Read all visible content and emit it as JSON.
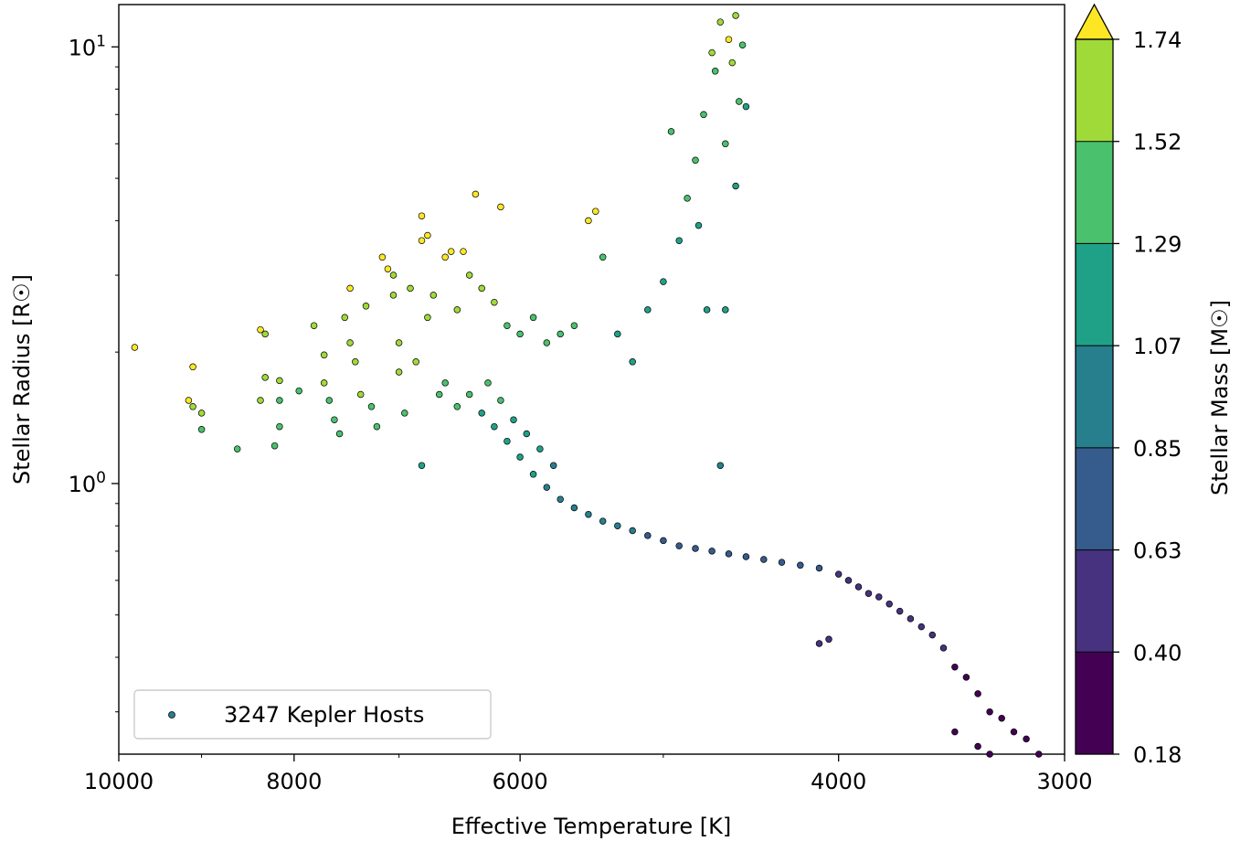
{
  "chart_data": {
    "type": "scatter",
    "title": "",
    "xlabel": "Effective Temperature [K]",
    "ylabel": "Stellar Radius [R☉]",
    "x_scale": "log",
    "y_scale": "log",
    "x_reversed": true,
    "xlim": [
      10000,
      3000
    ],
    "ylim": [
      0.24,
      12.5
    ],
    "x_ticks": [
      {
        "value": 10000,
        "label": "10000"
      },
      {
        "value": 8000,
        "label": "8000"
      },
      {
        "value": 6000,
        "label": "6000"
      },
      {
        "value": 4000,
        "label": "4000"
      },
      {
        "value": 3000,
        "label": "3000"
      }
    ],
    "x_minor_ticks": [
      9000,
      7000,
      5000
    ],
    "y_ticks": [
      {
        "value": 1,
        "base": "10",
        "exp": "0"
      },
      {
        "value": 10,
        "base": "10",
        "exp": "1"
      }
    ],
    "y_minor_ticks": [
      0.3,
      0.4,
      0.5,
      0.6,
      0.7,
      0.8,
      0.9,
      2,
      3,
      4,
      5,
      6,
      7,
      8,
      9
    ],
    "legend": {
      "label": "3247 Kepler Hosts",
      "position": "lower-left"
    },
    "colorbar": {
      "label": "Stellar Mass [M☉]",
      "ticks": [
        "0.18",
        "0.40",
        "0.63",
        "0.85",
        "1.07",
        "1.29",
        "1.52",
        "1.74"
      ],
      "levels": [
        0.18,
        0.4,
        0.63,
        0.85,
        1.07,
        1.29,
        1.52,
        1.74
      ],
      "colors": [
        "#440154",
        "#46327e",
        "#365c8d",
        "#277f8e",
        "#1fa187",
        "#4ac16d",
        "#a0da39",
        "#fde725"
      ],
      "extend": "max"
    },
    "series": [
      {
        "label_ref": "legend",
        "points": [
          {
            "x": 9800,
            "y": 2.05,
            "m": 1.8
          },
          {
            "x": 9100,
            "y": 1.85,
            "m": 1.8
          },
          {
            "x": 9150,
            "y": 1.55,
            "m": 1.8
          },
          {
            "x": 9100,
            "y": 1.5,
            "m": 1.7
          },
          {
            "x": 9000,
            "y": 1.45,
            "m": 1.55
          },
          {
            "x": 9000,
            "y": 1.33,
            "m": 1.45
          },
          {
            "x": 8600,
            "y": 1.2,
            "m": 1.35
          },
          {
            "x": 8350,
            "y": 2.25,
            "m": 1.75
          },
          {
            "x": 8300,
            "y": 2.2,
            "m": 1.7
          },
          {
            "x": 8300,
            "y": 1.75,
            "m": 1.65
          },
          {
            "x": 8350,
            "y": 1.55,
            "m": 1.6
          },
          {
            "x": 8150,
            "y": 1.72,
            "m": 1.55
          },
          {
            "x": 8150,
            "y": 1.55,
            "m": 1.5
          },
          {
            "x": 8150,
            "y": 1.35,
            "m": 1.45
          },
          {
            "x": 8200,
            "y": 1.22,
            "m": 1.35
          },
          {
            "x": 7950,
            "y": 1.63,
            "m": 1.5
          },
          {
            "x": 7800,
            "y": 2.3,
            "m": 1.65
          },
          {
            "x": 7700,
            "y": 1.97,
            "m": 1.6
          },
          {
            "x": 7700,
            "y": 1.7,
            "m": 1.55
          },
          {
            "x": 7650,
            "y": 1.55,
            "m": 1.5
          },
          {
            "x": 7600,
            "y": 1.4,
            "m": 1.45
          },
          {
            "x": 7550,
            "y": 1.3,
            "m": 1.4
          },
          {
            "x": 7500,
            "y": 2.4,
            "m": 1.7
          },
          {
            "x": 7450,
            "y": 2.8,
            "m": 1.75
          },
          {
            "x": 7450,
            "y": 2.1,
            "m": 1.65
          },
          {
            "x": 7400,
            "y": 1.9,
            "m": 1.6
          },
          {
            "x": 7350,
            "y": 1.6,
            "m": 1.55
          },
          {
            "x": 7300,
            "y": 2.55,
            "m": 1.65
          },
          {
            "x": 7250,
            "y": 1.5,
            "m": 1.5
          },
          {
            "x": 7200,
            "y": 1.35,
            "m": 1.42
          },
          {
            "x": 7150,
            "y": 3.3,
            "m": 1.78
          },
          {
            "x": 7100,
            "y": 3.1,
            "m": 1.75
          },
          {
            "x": 7050,
            "y": 3.0,
            "m": 1.7
          },
          {
            "x": 7050,
            "y": 2.7,
            "m": 1.65
          },
          {
            "x": 7000,
            "y": 2.1,
            "m": 1.6
          },
          {
            "x": 7000,
            "y": 1.8,
            "m": 1.55
          },
          {
            "x": 6950,
            "y": 1.45,
            "m": 1.45
          },
          {
            "x": 6900,
            "y": 2.8,
            "m": 1.7
          },
          {
            "x": 6850,
            "y": 1.9,
            "m": 1.55
          },
          {
            "x": 6800,
            "y": 4.1,
            "m": 1.8
          },
          {
            "x": 6800,
            "y": 3.6,
            "m": 1.78
          },
          {
            "x": 6750,
            "y": 3.7,
            "m": 1.78
          },
          {
            "x": 6750,
            "y": 2.4,
            "m": 1.6
          },
          {
            "x": 6700,
            "y": 2.7,
            "m": 1.65
          },
          {
            "x": 6650,
            "y": 1.6,
            "m": 1.45
          },
          {
            "x": 6600,
            "y": 3.3,
            "m": 1.76
          },
          {
            "x": 6550,
            "y": 3.4,
            "m": 1.78
          },
          {
            "x": 6500,
            "y": 2.5,
            "m": 1.6
          },
          {
            "x": 6450,
            "y": 3.4,
            "m": 1.78
          },
          {
            "x": 6400,
            "y": 3.0,
            "m": 1.7
          },
          {
            "x": 6350,
            "y": 4.6,
            "m": 1.82
          },
          {
            "x": 6300,
            "y": 2.8,
            "m": 1.65
          },
          {
            "x": 6200,
            "y": 2.6,
            "m": 1.55
          },
          {
            "x": 6150,
            "y": 4.3,
            "m": 1.8
          },
          {
            "x": 6100,
            "y": 2.3,
            "m": 1.5
          },
          {
            "x": 6000,
            "y": 2.2,
            "m": 1.45
          },
          {
            "x": 5900,
            "y": 2.4,
            "m": 1.45
          },
          {
            "x": 5800,
            "y": 2.1,
            "m": 1.4
          },
          {
            "x": 5700,
            "y": 2.2,
            "m": 1.38
          },
          {
            "x": 5600,
            "y": 2.3,
            "m": 1.4
          },
          {
            "x": 5500,
            "y": 4.0,
            "m": 1.76
          },
          {
            "x": 5450,
            "y": 4.2,
            "m": 1.78
          },
          {
            "x": 5400,
            "y": 3.3,
            "m": 1.3
          },
          {
            "x": 5300,
            "y": 2.2,
            "m": 1.25
          },
          {
            "x": 5200,
            "y": 1.9,
            "m": 1.2
          },
          {
            "x": 5100,
            "y": 2.5,
            "m": 1.25
          },
          {
            "x": 5000,
            "y": 2.9,
            "m": 1.28
          },
          {
            "x": 4950,
            "y": 6.4,
            "m": 1.4
          },
          {
            "x": 4900,
            "y": 3.6,
            "m": 1.28
          },
          {
            "x": 4850,
            "y": 4.5,
            "m": 1.32
          },
          {
            "x": 4800,
            "y": 5.5,
            "m": 1.35
          },
          {
            "x": 4780,
            "y": 3.9,
            "m": 1.28
          },
          {
            "x": 4750,
            "y": 7.0,
            "m": 1.42
          },
          {
            "x": 4730,
            "y": 2.5,
            "m": 1.2
          },
          {
            "x": 4700,
            "y": 9.7,
            "m": 1.6
          },
          {
            "x": 4680,
            "y": 8.8,
            "m": 1.5
          },
          {
            "x": 4650,
            "y": 11.4,
            "m": 1.7
          },
          {
            "x": 4620,
            "y": 6.0,
            "m": 1.38
          },
          {
            "x": 4600,
            "y": 10.4,
            "m": 1.78
          },
          {
            "x": 4580,
            "y": 9.2,
            "m": 1.55
          },
          {
            "x": 4560,
            "y": 11.8,
            "m": 1.7
          },
          {
            "x": 4540,
            "y": 7.5,
            "m": 1.35
          },
          {
            "x": 4520,
            "y": 10.1,
            "m": 1.45
          },
          {
            "x": 4500,
            "y": 7.3,
            "m": 1.2
          },
          {
            "x": 4560,
            "y": 4.8,
            "m": 1.1
          },
          {
            "x": 4620,
            "y": 2.5,
            "m": 1.2
          },
          {
            "x": 6600,
            "y": 1.7,
            "m": 1.4
          },
          {
            "x": 6500,
            "y": 1.5,
            "m": 1.3
          },
          {
            "x": 6400,
            "y": 1.6,
            "m": 1.32
          },
          {
            "x": 6300,
            "y": 1.45,
            "m": 1.25
          },
          {
            "x": 6250,
            "y": 1.7,
            "m": 1.38
          },
          {
            "x": 6200,
            "y": 1.35,
            "m": 1.22
          },
          {
            "x": 6150,
            "y": 1.55,
            "m": 1.3
          },
          {
            "x": 6100,
            "y": 1.25,
            "m": 1.18
          },
          {
            "x": 6050,
            "y": 1.4,
            "m": 1.2
          },
          {
            "x": 6000,
            "y": 1.15,
            "m": 1.12
          },
          {
            "x": 5950,
            "y": 1.3,
            "m": 1.15
          },
          {
            "x": 5900,
            "y": 1.05,
            "m": 1.08
          },
          {
            "x": 5850,
            "y": 1.2,
            "m": 1.1
          },
          {
            "x": 5800,
            "y": 0.98,
            "m": 1.02
          },
          {
            "x": 5750,
            "y": 1.1,
            "m": 1.05
          },
          {
            "x": 5700,
            "y": 0.92,
            "m": 0.98
          },
          {
            "x": 5600,
            "y": 0.88,
            "m": 0.95
          },
          {
            "x": 5500,
            "y": 0.85,
            "m": 0.92
          },
          {
            "x": 5400,
            "y": 0.82,
            "m": 0.9
          },
          {
            "x": 5300,
            "y": 0.8,
            "m": 0.88
          },
          {
            "x": 5200,
            "y": 0.78,
            "m": 0.86
          },
          {
            "x": 5100,
            "y": 0.76,
            "m": 0.84
          },
          {
            "x": 5000,
            "y": 0.74,
            "m": 0.82
          },
          {
            "x": 4900,
            "y": 0.72,
            "m": 0.8
          },
          {
            "x": 4800,
            "y": 0.71,
            "m": 0.78
          },
          {
            "x": 4700,
            "y": 0.7,
            "m": 0.76
          },
          {
            "x": 4600,
            "y": 0.69,
            "m": 0.74
          },
          {
            "x": 4500,
            "y": 0.68,
            "m": 0.72
          },
          {
            "x": 4400,
            "y": 0.67,
            "m": 0.7
          },
          {
            "x": 4300,
            "y": 0.66,
            "m": 0.68
          },
          {
            "x": 4200,
            "y": 0.65,
            "m": 0.66
          },
          {
            "x": 4100,
            "y": 0.64,
            "m": 0.63
          },
          {
            "x": 4000,
            "y": 0.62,
            "m": 0.6
          },
          {
            "x": 3950,
            "y": 0.6,
            "m": 0.58
          },
          {
            "x": 3900,
            "y": 0.58,
            "m": 0.56
          },
          {
            "x": 3850,
            "y": 0.56,
            "m": 0.54
          },
          {
            "x": 3800,
            "y": 0.55,
            "m": 0.52
          },
          {
            "x": 3750,
            "y": 0.53,
            "m": 0.5
          },
          {
            "x": 3700,
            "y": 0.51,
            "m": 0.48
          },
          {
            "x": 3650,
            "y": 0.49,
            "m": 0.46
          },
          {
            "x": 3600,
            "y": 0.47,
            "m": 0.44
          },
          {
            "x": 3550,
            "y": 0.45,
            "m": 0.42
          },
          {
            "x": 3500,
            "y": 0.42,
            "m": 0.4
          },
          {
            "x": 3450,
            "y": 0.38,
            "m": 0.35
          },
          {
            "x": 3400,
            "y": 0.36,
            "m": 0.32
          },
          {
            "x": 3350,
            "y": 0.33,
            "m": 0.28
          },
          {
            "x": 3300,
            "y": 0.3,
            "m": 0.25
          },
          {
            "x": 3250,
            "y": 0.29,
            "m": 0.22
          },
          {
            "x": 3200,
            "y": 0.27,
            "m": 0.2
          },
          {
            "x": 3150,
            "y": 0.26,
            "m": 0.18
          },
          {
            "x": 3450,
            "y": 0.27,
            "m": 0.2
          },
          {
            "x": 3350,
            "y": 0.25,
            "m": 0.17
          },
          {
            "x": 3300,
            "y": 0.24,
            "m": 0.17
          },
          {
            "x": 3100,
            "y": 0.24,
            "m": 0.16
          },
          {
            "x": 4050,
            "y": 0.44,
            "m": 0.52
          },
          {
            "x": 4100,
            "y": 0.43,
            "m": 0.5
          },
          {
            "x": 4650,
            "y": 1.1,
            "m": 1.0
          },
          {
            "x": 6800,
            "y": 1.1,
            "m": 1.2
          }
        ]
      }
    ]
  }
}
